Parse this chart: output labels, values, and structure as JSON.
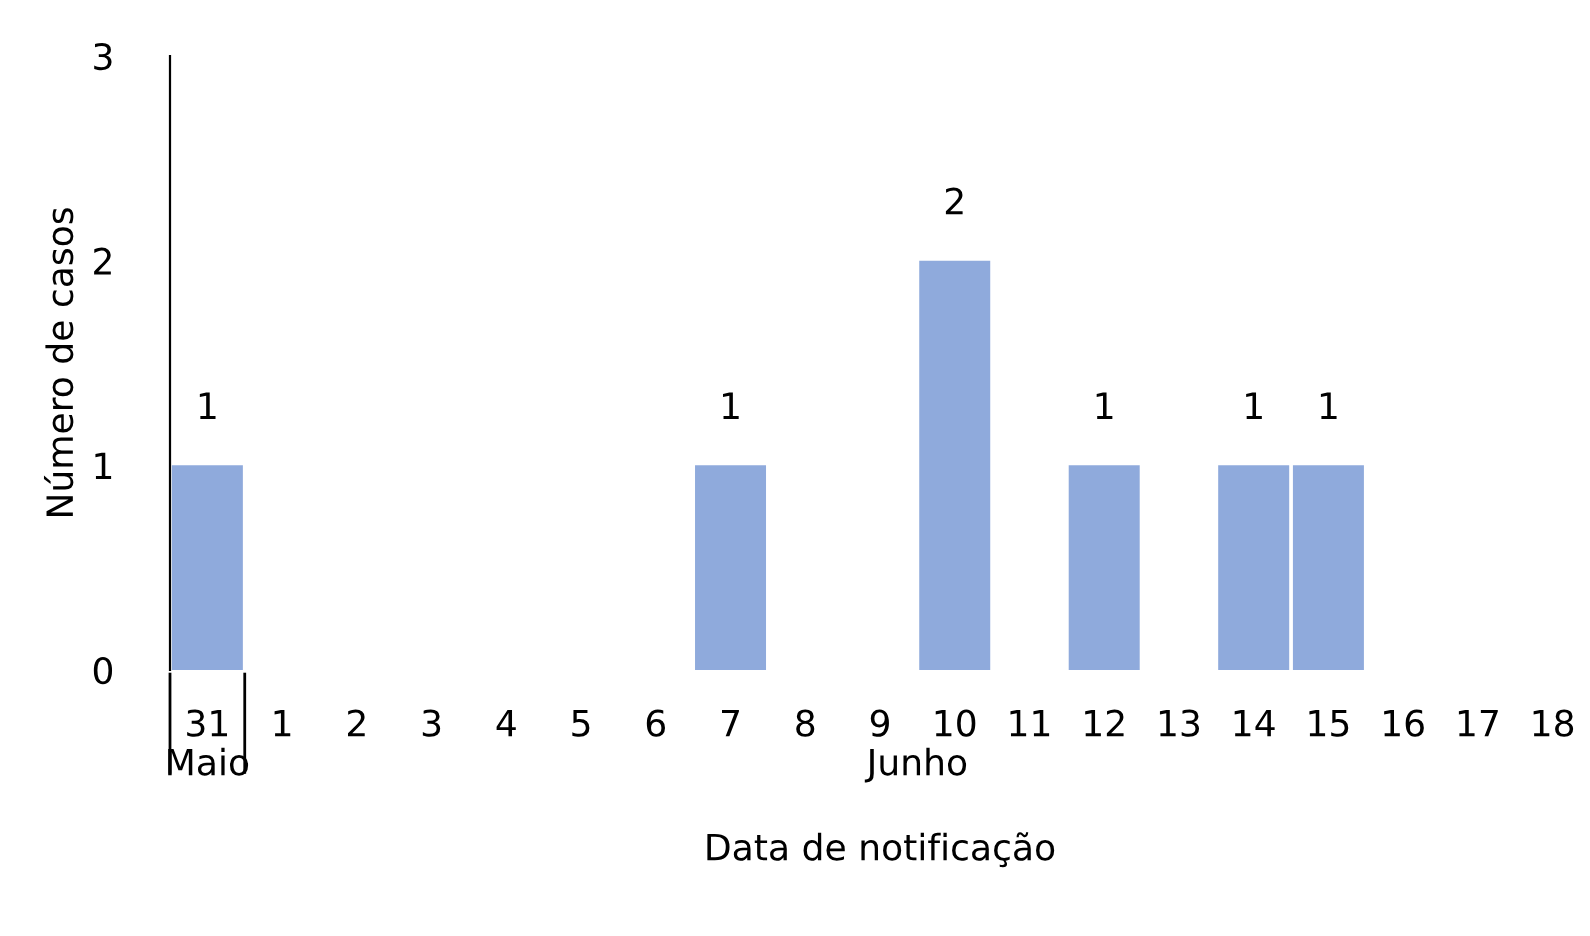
{
  "chart_data": {
    "type": "bar",
    "xlabel": "Data de notificação",
    "ylabel": "Número de casos",
    "categories": [
      "31",
      "1",
      "2",
      "3",
      "4",
      "5",
      "6",
      "7",
      "8",
      "9",
      "10",
      "11",
      "12",
      "13",
      "14",
      "15",
      "16",
      "17",
      "18"
    ],
    "values": [
      1,
      0,
      0,
      0,
      0,
      0,
      0,
      1,
      0,
      0,
      2,
      0,
      1,
      0,
      1,
      1,
      0,
      0,
      0
    ],
    "value_labels": [
      "1",
      null,
      null,
      null,
      null,
      null,
      null,
      "1",
      null,
      null,
      "2",
      null,
      "1",
      null,
      "1",
      "1",
      null,
      null,
      null
    ],
    "color": "#8faadc",
    "ylim": [
      0,
      3
    ],
    "yticks": [
      0,
      1,
      2,
      3
    ],
    "grid": false,
    "legend": false,
    "annotations": [
      "Maio",
      "Junho"
    ]
  }
}
